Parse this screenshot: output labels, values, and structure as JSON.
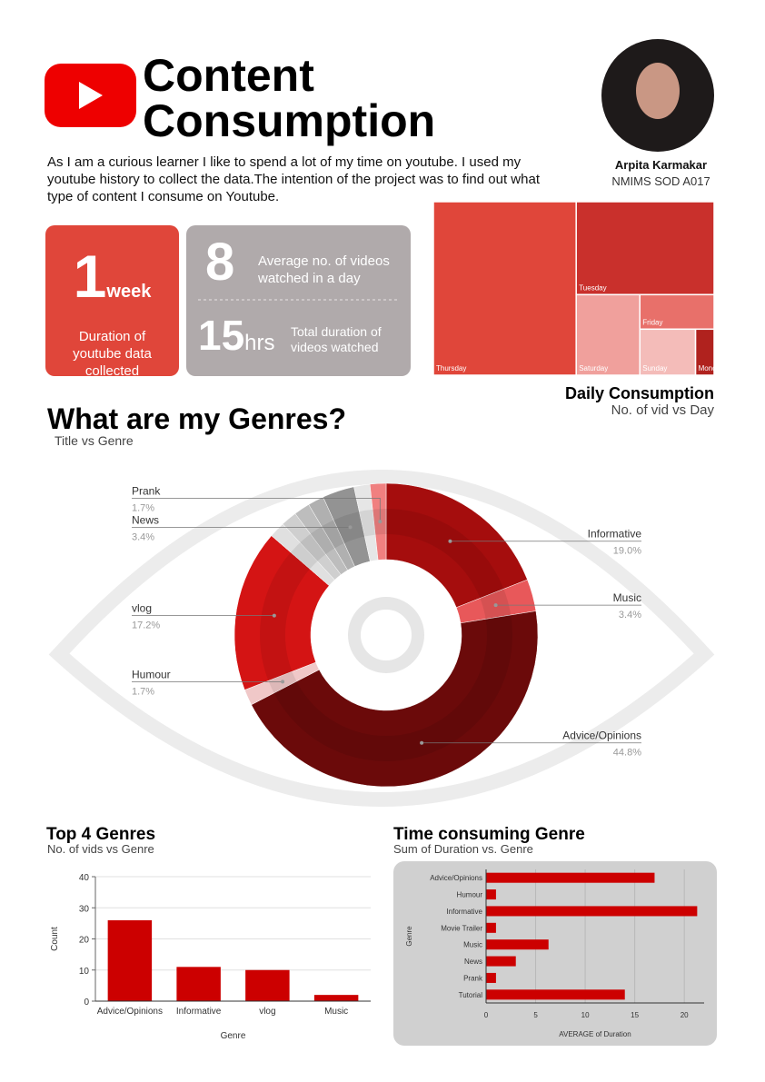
{
  "header": {
    "title": [
      "Content",
      "Consumption"
    ],
    "description": "As I am a curious learner I like to spend a lot of my time on youtube. I used my youtube history to collect the data.The intention of the project was to find out what type of content I consume on Youtube.",
    "author": "Arpita Karmakar",
    "affiliation": "NMIMS SOD A017"
  },
  "stats": [
    {
      "value": 1,
      "unit": "week",
      "label": "Duration of youtube data collected"
    },
    {
      "value": 8,
      "label": "Average no. of videos watched in a day"
    },
    {
      "value": 15,
      "unit": "hrs",
      "label": "Total duration of videos watched"
    }
  ],
  "chart_data": [
    {
      "type": "treemap",
      "title": "Daily Consumption",
      "subtitle": "No. of vid vs Day",
      "categories": [
        "Thursday",
        "Tuesday",
        "Saturday",
        "Friday",
        "Sunday",
        "Monday"
      ],
      "values": [
        29,
        15,
        6,
        3,
        3,
        1
      ],
      "colors": [
        "#e0463a",
        "#c9302c",
        "#f0a09c",
        "#e8706a",
        "#f4bcb9",
        "#b0221e"
      ]
    },
    {
      "type": "donut",
      "title": "What are my Genres?",
      "subtitle": "Title vs Genre",
      "categories": [
        "Informative",
        "Music",
        "Advice/Opinions",
        "Humour",
        "vlog",
        null,
        null,
        null,
        null,
        "News",
        null,
        "Prank"
      ],
      "values": [
        19.0,
        3.4,
        44.8,
        1.7,
        17.2,
        1.7,
        1.7,
        1.7,
        1.7,
        3.4,
        1.7,
        1.7
      ],
      "value_labels": [
        "19.0%",
        "3.4%",
        "44.8%",
        "1.7%",
        "17.2%",
        null,
        null,
        null,
        null,
        "3.4%",
        null,
        "1.7%"
      ],
      "colors": [
        "#a50d0d",
        "#e8585a",
        "#6b0a0a",
        "#f0c8c8",
        "#d41414",
        "#e0e0e0",
        "#cfcfcf",
        "#bdbdbd",
        "#b0b0b0",
        "#939393",
        "#e6e6e6",
        "#f08080"
      ]
    },
    {
      "type": "bar",
      "title": "Top 4  Genres",
      "subtitle": "No. of vids vs Genre",
      "x_label": "Genre",
      "y_label": "Count",
      "categories": [
        "Advice/Opinions",
        "Informative",
        "vlog",
        "Music"
      ],
      "values": [
        26,
        11,
        10,
        2
      ],
      "color": "#cc0000",
      "ylim": [
        0,
        40
      ],
      "yticks": [
        0,
        10,
        20,
        30,
        40
      ],
      "grid": true
    },
    {
      "type": "hbar",
      "title": "Time consuming Genre",
      "subtitle": "Sum of Duration vs. Genre",
      "x_label": "AVERAGE of Duration",
      "y_label": "Genre",
      "categories": [
        "Advice/Opinions",
        "Humour",
        "Informative",
        "Movie Trailer",
        "Music",
        "News",
        "Prank",
        "Tutorial"
      ],
      "values": [
        17,
        1,
        21.3,
        1,
        6.3,
        3,
        1,
        14
      ],
      "color": "#cc0000",
      "xlim": [
        0,
        22
      ],
      "xticks": [
        0,
        5,
        10,
        15,
        20
      ],
      "grid": true
    }
  ]
}
